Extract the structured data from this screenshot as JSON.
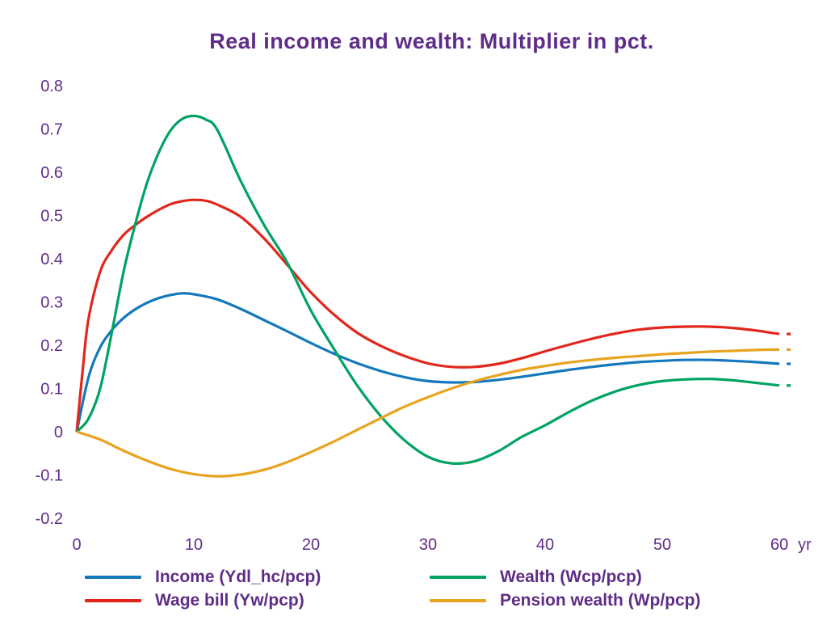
{
  "title": "Real income and wealth: Multiplier in pct.",
  "colors": {
    "text": "#5f2d87",
    "income": "#1478bc",
    "wage_bill": "#e2261c",
    "wealth": "#00a361",
    "pension_wealth": "#e8a41f"
  },
  "axes": {
    "y_ticks": [
      "0.8",
      "0.7",
      "0.6",
      "0.5",
      "0.4",
      "0.3",
      "0.2",
      "0.1",
      "0",
      "-0.1",
      "-0.2"
    ],
    "x_ticks": [
      "0",
      "10",
      "20",
      "30",
      "40",
      "50",
      "60"
    ],
    "x_unit": "yr"
  },
  "chart_data": {
    "type": "line",
    "title": "Real income and wealth: Multiplier in pct.",
    "xlabel": "years",
    "ylabel": "Multiplier in pct.",
    "xlim": [
      0,
      60
    ],
    "ylim": [
      -0.2,
      0.8
    ],
    "x_tick_step": 10,
    "y_tick_step": 0.1,
    "grid": false,
    "legend_position": "bottom",
    "series": [
      {
        "id": "income",
        "name": "Income (Ydl_hc/pcp)",
        "color": "#1478bc",
        "x": [
          0,
          1,
          2,
          3,
          4,
          5,
          6,
          7,
          8,
          9,
          10,
          12,
          14,
          16,
          18,
          20,
          22,
          24,
          26,
          28,
          30,
          32,
          34,
          36,
          38,
          40,
          42,
          44,
          46,
          48,
          50,
          52,
          54,
          56,
          58,
          60
        ],
        "y": [
          0,
          0.125,
          0.195,
          0.235,
          0.263,
          0.283,
          0.298,
          0.309,
          0.316,
          0.32,
          0.318,
          0.306,
          0.284,
          0.258,
          0.232,
          0.205,
          0.18,
          0.158,
          0.14,
          0.126,
          0.117,
          0.114,
          0.115,
          0.12,
          0.127,
          0.135,
          0.143,
          0.15,
          0.156,
          0.161,
          0.164,
          0.166,
          0.166,
          0.164,
          0.161,
          0.157
        ]
      },
      {
        "id": "wage-bill",
        "name": "Wage bill (Yw/pcp)",
        "color": "#e2261c",
        "x": [
          0,
          0.5,
          1,
          2,
          3,
          4,
          5,
          6,
          7,
          8,
          9,
          10,
          11,
          12,
          14,
          16,
          18,
          20,
          22,
          24,
          26,
          28,
          30,
          32,
          34,
          36,
          38,
          40,
          42,
          44,
          46,
          48,
          50,
          52,
          54,
          56,
          58,
          60
        ],
        "y": [
          0,
          0.14,
          0.26,
          0.37,
          0.42,
          0.455,
          0.478,
          0.497,
          0.513,
          0.526,
          0.533,
          0.536,
          0.534,
          0.525,
          0.497,
          0.447,
          0.385,
          0.322,
          0.27,
          0.228,
          0.198,
          0.175,
          0.158,
          0.15,
          0.15,
          0.157,
          0.17,
          0.186,
          0.201,
          0.215,
          0.227,
          0.236,
          0.241,
          0.243,
          0.243,
          0.24,
          0.234,
          0.226
        ]
      },
      {
        "id": "wealth",
        "name": "Wealth (Wcp/pcp)",
        "color": "#00a361",
        "x": [
          0,
          1,
          2,
          3,
          4,
          5,
          6,
          7,
          8,
          9,
          10,
          11,
          12,
          14,
          16,
          18,
          20,
          22,
          24,
          26,
          28,
          30,
          32,
          34,
          36,
          38,
          40,
          42,
          44,
          46,
          48,
          50,
          52,
          54,
          56,
          58,
          60
        ],
        "y": [
          0,
          0.03,
          0.1,
          0.23,
          0.37,
          0.48,
          0.575,
          0.645,
          0.696,
          0.723,
          0.73,
          0.722,
          0.698,
          0.58,
          0.478,
          0.39,
          0.28,
          0.19,
          0.105,
          0.035,
          -0.02,
          -0.058,
          -0.073,
          -0.068,
          -0.045,
          -0.012,
          0.015,
          0.045,
          0.072,
          0.093,
          0.108,
          0.117,
          0.121,
          0.122,
          0.119,
          0.113,
          0.107
        ]
      },
      {
        "id": "pension-wealth",
        "name": "Pension wealth (Wp/pcp)",
        "color": "#e8a41f",
        "x": [
          0,
          2,
          4,
          6,
          8,
          10,
          12,
          14,
          16,
          18,
          20,
          22,
          24,
          26,
          28,
          30,
          32,
          34,
          36,
          38,
          40,
          42,
          44,
          46,
          48,
          50,
          52,
          54,
          56,
          58,
          60
        ],
        "y": [
          0,
          -0.018,
          -0.044,
          -0.067,
          -0.086,
          -0.098,
          -0.103,
          -0.099,
          -0.088,
          -0.07,
          -0.047,
          -0.022,
          0.005,
          0.032,
          0.058,
          0.08,
          0.1,
          0.117,
          0.131,
          0.143,
          0.152,
          0.16,
          0.166,
          0.171,
          0.175,
          0.179,
          0.182,
          0.185,
          0.187,
          0.189,
          0.19
        ]
      }
    ]
  }
}
